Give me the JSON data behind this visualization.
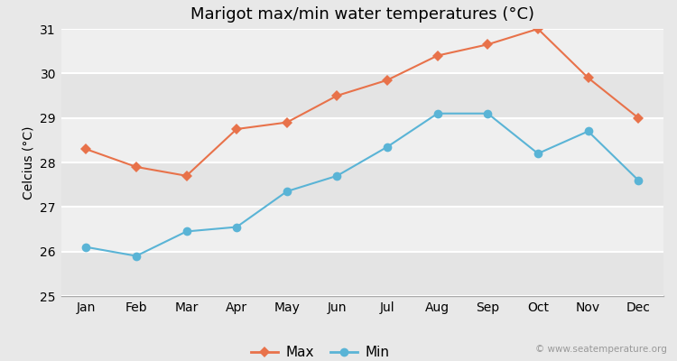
{
  "title": "Marigot max/min water temperatures (°C)",
  "xlabel": "",
  "ylabel": "Celcius (°C)",
  "months": [
    "Jan",
    "Feb",
    "Mar",
    "Apr",
    "May",
    "Jun",
    "Jul",
    "Aug",
    "Sep",
    "Oct",
    "Nov",
    "Dec"
  ],
  "max_temps": [
    28.3,
    27.9,
    27.7,
    28.75,
    28.9,
    29.5,
    29.85,
    30.4,
    30.65,
    31.0,
    29.9,
    29.0
  ],
  "min_temps": [
    26.1,
    25.9,
    26.45,
    26.55,
    27.35,
    27.7,
    28.35,
    29.1,
    29.1,
    28.2,
    28.7,
    27.6
  ],
  "max_color": "#e8724a",
  "min_color": "#5ab4d6",
  "outer_bg_color": "#e8e8e8",
  "plot_bg_light": "#efefef",
  "plot_bg_dark": "#e4e4e4",
  "grid_color": "#ffffff",
  "ylim": [
    25,
    31
  ],
  "yticks": [
    25,
    26,
    27,
    28,
    29,
    30,
    31
  ],
  "legend_labels": [
    "Max",
    "Min"
  ],
  "watermark": "© www.seatemperature.org",
  "title_fontsize": 13,
  "axis_fontsize": 10,
  "tick_fontsize": 10
}
